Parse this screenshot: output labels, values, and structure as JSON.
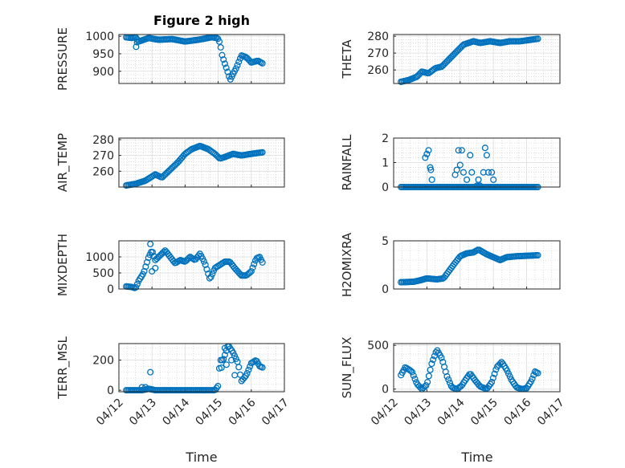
{
  "figure_title": "Figure 2 high",
  "chart_data": [
    {
      "type": "scatter",
      "ylabel": "PRESSURE",
      "ylim": [
        865,
        1005
      ],
      "yticks": [
        900,
        950,
        1000
      ],
      "xticks": [
        "04/12",
        "04/13",
        "04/14",
        "04/15",
        "04/16",
        "04/17"
      ],
      "knots": [
        [
          0.22,
          997
        ],
        [
          0.4,
          995
        ],
        [
          0.5,
          998
        ],
        [
          0.6,
          985
        ],
        [
          0.9,
          995
        ],
        [
          1.2,
          990
        ],
        [
          1.6,
          992
        ],
        [
          2.0,
          985
        ],
        [
          2.4,
          990
        ],
        [
          2.8,
          997
        ],
        [
          2.98,
          995
        ],
        [
          3.05,
          982
        ],
        [
          3.12,
          945
        ],
        [
          3.2,
          922
        ],
        [
          3.28,
          900
        ],
        [
          3.36,
          875
        ],
        [
          3.44,
          890
        ],
        [
          3.55,
          910
        ],
        [
          3.7,
          945
        ],
        [
          3.85,
          940
        ],
        [
          4.0,
          925
        ],
        [
          4.2,
          930
        ],
        [
          4.35,
          922
        ]
      ],
      "extras": [
        [
          0.55,
          983
        ],
        [
          0.52,
          970
        ]
      ],
      "color": "#0072BD"
    },
    {
      "type": "scatter",
      "ylabel": "THETA",
      "ylim": [
        252,
        281
      ],
      "yticks": [
        260,
        270,
        280
      ],
      "xticks": [
        "04/12",
        "04/13",
        "04/14",
        "04/15",
        "04/16",
        "04/17"
      ],
      "knots": [
        [
          0.22,
          253
        ],
        [
          0.45,
          254
        ],
        [
          0.7,
          256
        ],
        [
          0.85,
          259
        ],
        [
          1.05,
          258
        ],
        [
          1.25,
          261
        ],
        [
          1.45,
          262
        ],
        [
          1.7,
          267
        ],
        [
          1.9,
          271
        ],
        [
          2.1,
          275
        ],
        [
          2.4,
          277
        ],
        [
          2.6,
          276
        ],
        [
          2.9,
          277
        ],
        [
          3.2,
          276
        ],
        [
          3.5,
          277
        ],
        [
          3.8,
          277
        ],
        [
          4.35,
          278.5
        ]
      ],
      "extras": [],
      "color": "#0072BD"
    },
    {
      "type": "scatter",
      "ylabel": "AIR_TEMP",
      "ylim": [
        250,
        281
      ],
      "yticks": [
        260,
        270,
        280
      ],
      "xticks": [
        "04/12",
        "04/13",
        "04/14",
        "04/15",
        "04/16",
        "04/17"
      ],
      "knots": [
        [
          0.22,
          251
        ],
        [
          0.5,
          252
        ],
        [
          0.8,
          254
        ],
        [
          1.1,
          258
        ],
        [
          1.3,
          256
        ],
        [
          1.5,
          260
        ],
        [
          1.8,
          266
        ],
        [
          2.0,
          271
        ],
        [
          2.2,
          274
        ],
        [
          2.45,
          276
        ],
        [
          2.7,
          274
        ],
        [
          2.9,
          271
        ],
        [
          3.05,
          268
        ],
        [
          3.2,
          269
        ],
        [
          3.45,
          271
        ],
        [
          3.7,
          270
        ],
        [
          4.0,
          271
        ],
        [
          4.35,
          272
        ]
      ],
      "extras": [],
      "color": "#0072BD"
    },
    {
      "type": "scatter",
      "ylabel": "RAINFALL",
      "ylim": [
        0,
        2
      ],
      "yticks": [
        0,
        1,
        2
      ],
      "xticks": [
        "04/12",
        "04/13",
        "04/14",
        "04/15",
        "04/16",
        "04/17"
      ],
      "knots": [
        [
          0.22,
          0
        ],
        [
          4.35,
          0
        ]
      ],
      "extras": [
        [
          0.95,
          1.2
        ],
        [
          1.0,
          1.35
        ],
        [
          1.05,
          1.5
        ],
        [
          1.1,
          0.8
        ],
        [
          1.12,
          0.7
        ],
        [
          1.15,
          0.3
        ],
        [
          1.85,
          0.5
        ],
        [
          1.9,
          0.7
        ],
        [
          1.95,
          1.5
        ],
        [
          2.0,
          0.9
        ],
        [
          2.05,
          1.5
        ],
        [
          2.1,
          0.6
        ],
        [
          2.2,
          0.3
        ],
        [
          2.3,
          1.3
        ],
        [
          2.35,
          0.6
        ],
        [
          2.5,
          0.05
        ],
        [
          2.55,
          0.3
        ],
        [
          2.6,
          0.05
        ],
        [
          2.7,
          0.6
        ],
        [
          2.75,
          1.6
        ],
        [
          2.8,
          1.3
        ],
        [
          2.85,
          0.6
        ],
        [
          2.95,
          0.6
        ],
        [
          3.0,
          0.3
        ]
      ],
      "color": "#0072BD"
    },
    {
      "type": "scatter",
      "ylabel": "MIXDEPTH",
      "ylim": [
        0,
        1500
      ],
      "yticks": [
        0,
        500,
        1000
      ],
      "xticks": [
        "04/12",
        "04/13",
        "04/14",
        "04/15",
        "04/16",
        "04/17"
      ],
      "knots": [
        [
          0.22,
          80
        ],
        [
          0.4,
          60
        ],
        [
          0.5,
          20
        ],
        [
          0.6,
          260
        ],
        [
          0.75,
          500
        ],
        [
          0.9,
          1000
        ],
        [
          1.0,
          1200
        ],
        [
          1.1,
          900
        ],
        [
          1.25,
          1050
        ],
        [
          1.4,
          1200
        ],
        [
          1.55,
          1000
        ],
        [
          1.7,
          800
        ],
        [
          1.85,
          900
        ],
        [
          2.0,
          850
        ],
        [
          2.15,
          1000
        ],
        [
          2.3,
          900
        ],
        [
          2.45,
          1100
        ],
        [
          2.6,
          800
        ],
        [
          2.75,
          300
        ],
        [
          2.9,
          650
        ],
        [
          3.05,
          750
        ],
        [
          3.2,
          850
        ],
        [
          3.35,
          850
        ],
        [
          3.5,
          650
        ],
        [
          3.7,
          420
        ],
        [
          3.85,
          420
        ],
        [
          4.0,
          550
        ],
        [
          4.15,
          950
        ],
        [
          4.25,
          1000
        ],
        [
          4.35,
          800
        ]
      ],
      "extras": [
        [
          0.95,
          1400
        ],
        [
          1.0,
          550
        ],
        [
          1.1,
          650
        ]
      ],
      "color": "#0072BD"
    },
    {
      "type": "scatter",
      "ylabel": "H2OMIXRA",
      "ylim": [
        0,
        5
      ],
      "yticks": [
        0,
        5
      ],
      "xticks": [
        "04/12",
        "04/13",
        "04/14",
        "04/15",
        "04/16",
        "04/17"
      ],
      "knots": [
        [
          0.22,
          0.7
        ],
        [
          0.6,
          0.75
        ],
        [
          0.8,
          0.9
        ],
        [
          1.0,
          1.1
        ],
        [
          1.3,
          1.0
        ],
        [
          1.5,
          1.1
        ],
        [
          1.8,
          2.5
        ],
        [
          2.0,
          3.4
        ],
        [
          2.2,
          3.7
        ],
        [
          2.4,
          3.8
        ],
        [
          2.55,
          4.1
        ],
        [
          2.8,
          3.6
        ],
        [
          3.0,
          3.3
        ],
        [
          3.2,
          3.0
        ],
        [
          3.4,
          3.3
        ],
        [
          3.7,
          3.4
        ],
        [
          4.35,
          3.5
        ]
      ],
      "extras": [],
      "color": "#0072BD"
    },
    {
      "type": "scatter",
      "ylabel": "TERR_MSL",
      "ylim": [
        -10,
        310
      ],
      "yticks": [
        0,
        200
      ],
      "xticks": [
        "04/12",
        "04/13",
        "04/14",
        "04/15",
        "04/16",
        "04/17"
      ],
      "knots": [
        [
          0.22,
          0
        ],
        [
          0.7,
          0
        ],
        [
          0.9,
          10
        ],
        [
          1.1,
          0
        ],
        [
          2.9,
          0
        ],
        [
          3.0,
          30
        ],
        [
          3.05,
          200
        ],
        [
          3.15,
          200
        ],
        [
          3.3,
          300
        ],
        [
          3.45,
          250
        ],
        [
          3.6,
          180
        ],
        [
          3.7,
          60
        ],
        [
          3.85,
          100
        ],
        [
          4.0,
          180
        ],
        [
          4.15,
          200
        ],
        [
          4.25,
          160
        ],
        [
          4.35,
          150
        ]
      ],
      "extras": [
        [
          0.7,
          20
        ],
        [
          0.8,
          20
        ],
        [
          0.95,
          120
        ],
        [
          3.1,
          150
        ],
        [
          3.25,
          170
        ],
        [
          3.2,
          280
        ],
        [
          3.4,
          200
        ],
        [
          3.5,
          100
        ]
      ],
      "color": "#0072BD"
    },
    {
      "type": "scatter",
      "ylabel": "SUN_FLUX",
      "ylim": [
        -30,
        520
      ],
      "yticks": [
        0,
        500
      ],
      "xticks": [
        "04/12",
        "04/13",
        "04/14",
        "04/15",
        "04/16",
        "04/17"
      ],
      "knots": [
        [
          0.22,
          160
        ],
        [
          0.35,
          250
        ],
        [
          0.55,
          200
        ],
        [
          0.7,
          60
        ],
        [
          0.85,
          0
        ],
        [
          1.0,
          50
        ],
        [
          1.15,
          300
        ],
        [
          1.3,
          450
        ],
        [
          1.45,
          350
        ],
        [
          1.6,
          150
        ],
        [
          1.75,
          20
        ],
        [
          1.9,
          0
        ],
        [
          2.05,
          40
        ],
        [
          2.15,
          100
        ],
        [
          2.3,
          180
        ],
        [
          2.45,
          100
        ],
        [
          2.6,
          30
        ],
        [
          2.8,
          0
        ],
        [
          2.95,
          80
        ],
        [
          3.1,
          250
        ],
        [
          3.25,
          310
        ],
        [
          3.4,
          220
        ],
        [
          3.55,
          100
        ],
        [
          3.7,
          20
        ],
        [
          3.85,
          0
        ],
        [
          4.0,
          10
        ],
        [
          4.15,
          100
        ],
        [
          4.25,
          200
        ],
        [
          4.35,
          180
        ]
      ],
      "extras": [],
      "color": "#0072BD"
    }
  ],
  "xlabel": "Time"
}
